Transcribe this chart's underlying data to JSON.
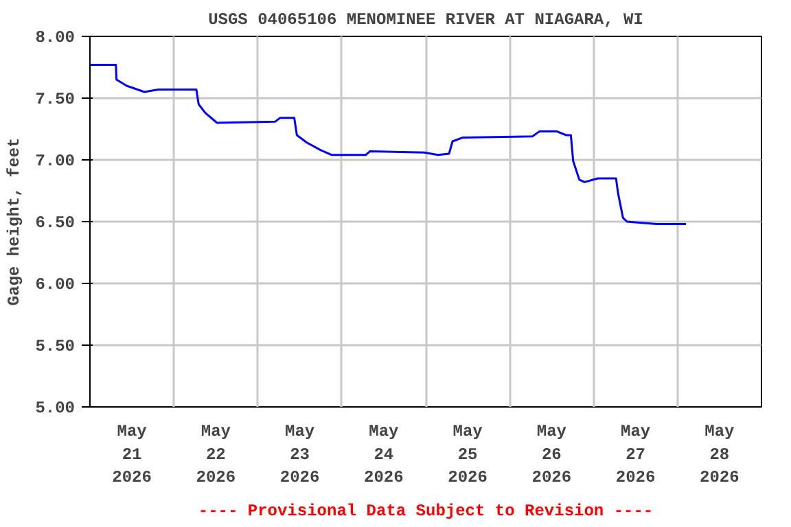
{
  "chart_data": {
    "type": "line",
    "title": "USGS 04065106 MENOMINEE RIVER AT NIAGARA, WI",
    "ylabel": "Gage height, feet",
    "annotations": [
      "---- Provisional Data Subject to Revision ----"
    ],
    "x": [
      "2026-05-21T00:00",
      "2026-05-21T07:25",
      "2026-05-21T07:35",
      "2026-05-21T10:30",
      "2026-05-21T15:35",
      "2026-05-21T19:30",
      "2026-05-22T06:25",
      "2026-05-22T07:05",
      "2026-05-22T09:00",
      "2026-05-22T12:20",
      "2026-05-23T05:00",
      "2026-05-23T06:20",
      "2026-05-23T10:25",
      "2026-05-23T11:10",
      "2026-05-23T14:00",
      "2026-05-23T17:55",
      "2026-05-23T21:10",
      "2026-05-24T06:50",
      "2026-05-24T08:05",
      "2026-05-24T23:35",
      "2026-05-25T03:30",
      "2026-05-25T06:40",
      "2026-05-25T07:40",
      "2026-05-25T10:30",
      "2026-05-26T06:30",
      "2026-05-26T08:30",
      "2026-05-26T13:35",
      "2026-05-26T16:10",
      "2026-05-26T17:30",
      "2026-05-26T18:10",
      "2026-05-26T19:55",
      "2026-05-26T21:25",
      "2026-05-27T01:10",
      "2026-05-27T06:25",
      "2026-05-27T07:00",
      "2026-05-27T08:25",
      "2026-05-27T09:35",
      "2026-05-27T18:00",
      "2026-05-28T02:25"
    ],
    "series": [
      {
        "color": "#0000ff",
        "values": [
          7.77,
          7.77,
          7.65,
          7.6,
          7.55,
          7.57,
          7.57,
          7.45,
          7.38,
          7.3,
          7.31,
          7.34,
          7.34,
          7.2,
          7.14,
          7.08,
          7.04,
          7.04,
          7.07,
          7.06,
          7.04,
          7.05,
          7.15,
          7.18,
          7.19,
          7.23,
          7.23,
          7.2,
          7.2,
          6.99,
          6.84,
          6.82,
          6.85,
          6.85,
          6.73,
          6.53,
          6.5,
          6.48,
          6.48
        ]
      }
    ],
    "xlim": [
      "2026-05-21T00:00",
      "2026-05-29T00:00"
    ],
    "xticks": [
      {
        "value": "2026-05-21T00:00",
        "label": null
      },
      {
        "value": "2026-05-21T12:00",
        "label": "May\n21\n2026"
      },
      {
        "value": "2026-05-22T00:00",
        "label": null
      },
      {
        "value": "2026-05-22T12:00",
        "label": "May\n22\n2026"
      },
      {
        "value": "2026-05-23T00:00",
        "label": null
      },
      {
        "value": "2026-05-23T12:00",
        "label": "May\n23\n2026"
      },
      {
        "value": "2026-05-24T00:00",
        "label": null
      },
      {
        "value": "2026-05-24T12:00",
        "label": "May\n24\n2026"
      },
      {
        "value": "2026-05-25T00:00",
        "label": null
      },
      {
        "value": "2026-05-25T12:00",
        "label": "May\n25\n2026"
      },
      {
        "value": "2026-05-26T00:00",
        "label": null
      },
      {
        "value": "2026-05-26T12:00",
        "label": "May\n26\n2026"
      },
      {
        "value": "2026-05-27T00:00",
        "label": null
      },
      {
        "value": "2026-05-27T12:00",
        "label": "May\n27\n2026"
      },
      {
        "value": "2026-05-28T00:00",
        "label": null
      },
      {
        "value": "2026-05-28T12:00",
        "label": "May\n28\n2026"
      },
      {
        "value": "2026-05-29T00:00",
        "label": null
      }
    ],
    "ylim": [
      5,
      8
    ],
    "yticks": [
      {
        "value": 5,
        "label": "5.00"
      },
      {
        "value": 5.5,
        "label": "5.50"
      },
      {
        "value": 6,
        "label": "6.00"
      },
      {
        "value": 6.5,
        "label": "6.50"
      },
      {
        "value": 7,
        "label": "7.00"
      },
      {
        "value": 7.5,
        "label": "7.50"
      },
      {
        "value": 8,
        "label": "8.00"
      }
    ],
    "grid": true,
    "marker": "none",
    "line_style": "solid"
  }
}
